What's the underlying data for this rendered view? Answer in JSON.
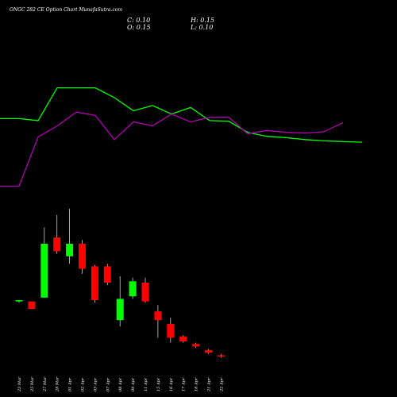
{
  "header": {
    "title": "ONGC 282 CE Option Chart MunafaSutra.com",
    "close_label": "C: 0.10",
    "high_label": "H: 0.15",
    "open_label": "O: 0.15",
    "low_label": "L: 0.10"
  },
  "colors": {
    "background": "#000000",
    "up": "#00ff00",
    "down": "#ff0000",
    "line_green": "#00ff00",
    "line_purple": "#b000b0",
    "text": "#ffffff"
  },
  "chart_data": {
    "type": "candlestick",
    "categories": [
      "23 Mar",
      "25 Mar",
      "27 Mar",
      "28 Mar",
      "01 Apr",
      "02 Apr",
      "03 Apr",
      "07 Apr",
      "08 Apr",
      "09 Apr",
      "11 Apr",
      "15 Apr",
      "16 Apr",
      "17 Apr",
      "18 Apr",
      "21 Apr",
      "22 Apr"
    ],
    "ohlc": [
      {
        "open": 7.6,
        "high": 7.7,
        "low": 7.5,
        "close": 7.7
      },
      {
        "open": 7.6,
        "high": 7.6,
        "low": 7.0,
        "close": 7.0
      },
      {
        "open": 7.9,
        "high": 13.5,
        "low": 7.9,
        "close": 12.2
      },
      {
        "open": 12.7,
        "high": 14.5,
        "low": 11.4,
        "close": 11.6
      },
      {
        "open": 11.2,
        "high": 15.0,
        "low": 10.6,
        "close": 12.2
      },
      {
        "open": 12.2,
        "high": 12.5,
        "low": 9.8,
        "close": 10.2
      },
      {
        "open": 10.4,
        "high": 10.5,
        "low": 7.5,
        "close": 7.7
      },
      {
        "open": 10.4,
        "high": 10.6,
        "low": 8.9,
        "close": 9.1
      },
      {
        "open": 6.1,
        "high": 9.6,
        "low": 5.6,
        "close": 7.8
      },
      {
        "open": 8.0,
        "high": 9.5,
        "low": 7.8,
        "close": 9.2
      },
      {
        "open": 9.1,
        "high": 9.5,
        "low": 7.5,
        "close": 7.6
      },
      {
        "open": 6.8,
        "high": 7.3,
        "low": 4.7,
        "close": 6.1
      },
      {
        "open": 5.8,
        "high": 6.3,
        "low": 4.3,
        "close": 4.7
      },
      {
        "open": 4.8,
        "high": 4.9,
        "low": 4.3,
        "close": 4.4
      },
      {
        "open": 4.2,
        "high": 4.3,
        "low": 3.9,
        "close": 4.0
      },
      {
        "open": 3.7,
        "high": 3.8,
        "low": 3.4,
        "close": 3.5
      },
      {
        "open": 3.3,
        "high": 3.4,
        "low": 3.1,
        "close": 3.2
      }
    ],
    "price_range": [
      2.5,
      15.5
    ],
    "lines": [
      {
        "color": "#00ff00",
        "points": [
          [
            0,
            68
          ],
          [
            1,
            68
          ],
          [
            2,
            65
          ],
          [
            3,
            115
          ],
          [
            4,
            115
          ],
          [
            5,
            115
          ],
          [
            6,
            100
          ],
          [
            7,
            80
          ],
          [
            8,
            88
          ],
          [
            9,
            75
          ],
          [
            10,
            85
          ],
          [
            11,
            65
          ],
          [
            12,
            64
          ],
          [
            13,
            47
          ],
          [
            14,
            41
          ],
          [
            15,
            39
          ],
          [
            16,
            36
          ],
          [
            17,
            34
          ],
          [
            18,
            33
          ],
          [
            19,
            32
          ]
        ]
      },
      {
        "color": "#b000b0",
        "points": [
          [
            0,
            -35
          ],
          [
            1,
            -35
          ],
          [
            2,
            40
          ],
          [
            3,
            57
          ],
          [
            4,
            78
          ],
          [
            5,
            73
          ],
          [
            6,
            36
          ],
          [
            7,
            63
          ],
          [
            8,
            57
          ],
          [
            9,
            75
          ],
          [
            10,
            63
          ],
          [
            11,
            70
          ],
          [
            12,
            70
          ],
          [
            13,
            45
          ],
          [
            14,
            50
          ],
          [
            15,
            47
          ],
          [
            16,
            46
          ],
          [
            17,
            48
          ],
          [
            18,
            62
          ]
        ]
      }
    ],
    "line_range": [
      -60,
      140
    ],
    "grid": false
  }
}
